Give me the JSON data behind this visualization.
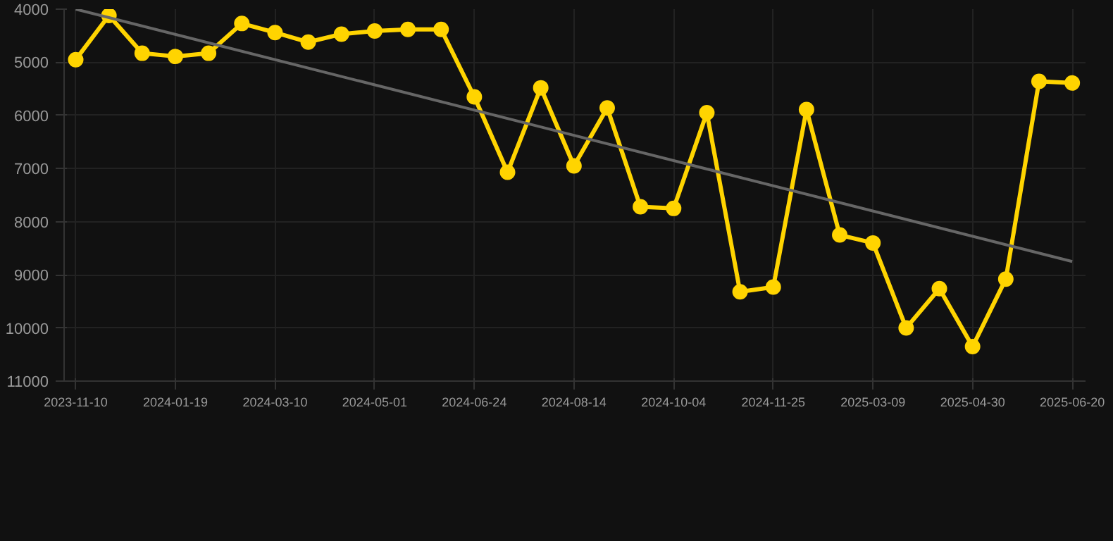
{
  "chart_data": {
    "type": "line",
    "categories": [
      "2023-11-10",
      null,
      null,
      "2024-01-19",
      null,
      null,
      "2024-03-10",
      null,
      null,
      "2024-05-01",
      null,
      null,
      "2024-06-24",
      null,
      null,
      "2024-08-14",
      null,
      null,
      "2024-10-04",
      null,
      null,
      "2024-11-25",
      null,
      null,
      "2025-03-09",
      null,
      null,
      "2025-04-30",
      null,
      null,
      "2025-06-20"
    ],
    "series": [
      {
        "color": "#ffd400",
        "marker": "circle",
        "values": [
          4950,
          4120,
          4830,
          4890,
          4830,
          4270,
          4440,
          4620,
          4470,
          4410,
          4380,
          4380,
          5650,
          7070,
          5480,
          6950,
          5860,
          7720,
          7750,
          5950,
          9320,
          9230,
          5890,
          8250,
          8400,
          10000,
          9260,
          10350,
          9080,
          5360,
          5390
        ]
      },
      {
        "type": "line",
        "color": "#666666",
        "marker": "none",
        "values": [
          4000,
          null,
          null,
          null,
          null,
          null,
          null,
          null,
          null,
          null,
          null,
          null,
          null,
          null,
          null,
          null,
          null,
          null,
          null,
          null,
          null,
          null,
          null,
          null,
          null,
          null,
          null,
          null,
          null,
          null,
          8750
        ]
      }
    ],
    "ylim": [
      11000,
      4000
    ],
    "yticks": [
      4000,
      5000,
      6000,
      7000,
      8000,
      9000,
      10000,
      11000
    ],
    "grid": true
  }
}
